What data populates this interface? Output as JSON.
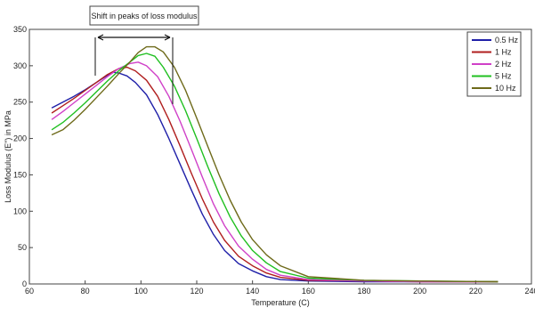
{
  "chart_data": {
    "type": "line",
    "title": "",
    "xlabel": "Temperature (C)",
    "ylabel": "Loss Modulus (E\") in MPa",
    "xlim": [
      60,
      240
    ],
    "ylim": [
      0,
      350
    ],
    "xticks": [
      "60",
      "80",
      "100",
      "120",
      "140",
      "160",
      "180",
      "200",
      "220",
      "240"
    ],
    "yticks": [
      "0",
      "50",
      "100",
      "150",
      "200",
      "250",
      "300",
      "350"
    ],
    "grid": false,
    "legend_position": "top-right",
    "annotation": "Shift in peaks of loss modulus",
    "series": [
      {
        "name": "0.5 Hz",
        "color": "#1f1fa8",
        "points": [
          [
            68,
            242
          ],
          [
            72,
            250
          ],
          [
            76,
            258
          ],
          [
            80,
            267
          ],
          [
            84,
            277
          ],
          [
            88,
            287
          ],
          [
            90,
            291
          ],
          [
            92,
            290
          ],
          [
            95,
            286
          ],
          [
            98,
            277
          ],
          [
            102,
            260
          ],
          [
            106,
            233
          ],
          [
            110,
            200
          ],
          [
            114,
            165
          ],
          [
            118,
            130
          ],
          [
            122,
            96
          ],
          [
            126,
            68
          ],
          [
            130,
            46
          ],
          [
            135,
            28
          ],
          [
            140,
            18
          ],
          [
            145,
            10
          ],
          [
            150,
            6
          ],
          [
            160,
            4
          ],
          [
            180,
            3
          ],
          [
            200,
            3
          ],
          [
            228,
            3
          ]
        ]
      },
      {
        "name": "1 Hz",
        "color": "#b01e1e",
        "points": [
          [
            68,
            235
          ],
          [
            72,
            245
          ],
          [
            76,
            255
          ],
          [
            80,
            266
          ],
          [
            84,
            277
          ],
          [
            88,
            288
          ],
          [
            92,
            296
          ],
          [
            95,
            298
          ],
          [
            98,
            293
          ],
          [
            102,
            280
          ],
          [
            106,
            258
          ],
          [
            110,
            226
          ],
          [
            114,
            190
          ],
          [
            118,
            153
          ],
          [
            122,
            117
          ],
          [
            126,
            85
          ],
          [
            130,
            60
          ],
          [
            135,
            38
          ],
          [
            140,
            25
          ],
          [
            145,
            15
          ],
          [
            150,
            9
          ],
          [
            160,
            5
          ],
          [
            180,
            4
          ],
          [
            200,
            3
          ],
          [
            228,
            3
          ]
        ]
      },
      {
        "name": "2 Hz",
        "color": "#d040c8",
        "points": [
          [
            68,
            226
          ],
          [
            72,
            237
          ],
          [
            76,
            249
          ],
          [
            80,
            261
          ],
          [
            84,
            273
          ],
          [
            88,
            285
          ],
          [
            92,
            296
          ],
          [
            96,
            303
          ],
          [
            99,
            305
          ],
          [
            102,
            300
          ],
          [
            106,
            285
          ],
          [
            110,
            258
          ],
          [
            114,
            224
          ],
          [
            118,
            186
          ],
          [
            122,
            147
          ],
          [
            126,
            110
          ],
          [
            130,
            80
          ],
          [
            135,
            52
          ],
          [
            140,
            34
          ],
          [
            145,
            20
          ],
          [
            150,
            12
          ],
          [
            160,
            6
          ],
          [
            180,
            4
          ],
          [
            200,
            3
          ],
          [
            228,
            3
          ]
        ]
      },
      {
        "name": "5 Hz",
        "color": "#20c020",
        "points": [
          [
            68,
            212
          ],
          [
            72,
            222
          ],
          [
            76,
            235
          ],
          [
            80,
            249
          ],
          [
            84,
            264
          ],
          [
            88,
            279
          ],
          [
            92,
            293
          ],
          [
            96,
            305
          ],
          [
            99,
            314
          ],
          [
            102,
            317
          ],
          [
            105,
            313
          ],
          [
            108,
            298
          ],
          [
            112,
            272
          ],
          [
            116,
            238
          ],
          [
            120,
            200
          ],
          [
            124,
            161
          ],
          [
            128,
            124
          ],
          [
            132,
            92
          ],
          [
            136,
            66
          ],
          [
            140,
            46
          ],
          [
            145,
            29
          ],
          [
            150,
            17
          ],
          [
            160,
            8
          ],
          [
            180,
            5
          ],
          [
            200,
            4
          ],
          [
            228,
            3
          ]
        ]
      },
      {
        "name": "10 Hz",
        "color": "#6e6a1a",
        "points": [
          [
            68,
            205
          ],
          [
            72,
            212
          ],
          [
            76,
            225
          ],
          [
            80,
            240
          ],
          [
            84,
            256
          ],
          [
            88,
            272
          ],
          [
            92,
            289
          ],
          [
            96,
            305
          ],
          [
            99,
            318
          ],
          [
            102,
            326
          ],
          [
            105,
            326
          ],
          [
            108,
            319
          ],
          [
            112,
            298
          ],
          [
            116,
            266
          ],
          [
            120,
            228
          ],
          [
            124,
            189
          ],
          [
            128,
            150
          ],
          [
            132,
            115
          ],
          [
            136,
            85
          ],
          [
            140,
            61
          ],
          [
            145,
            40
          ],
          [
            150,
            25
          ],
          [
            160,
            10
          ],
          [
            180,
            5
          ],
          [
            200,
            4
          ],
          [
            228,
            3
          ]
        ]
      }
    ]
  }
}
